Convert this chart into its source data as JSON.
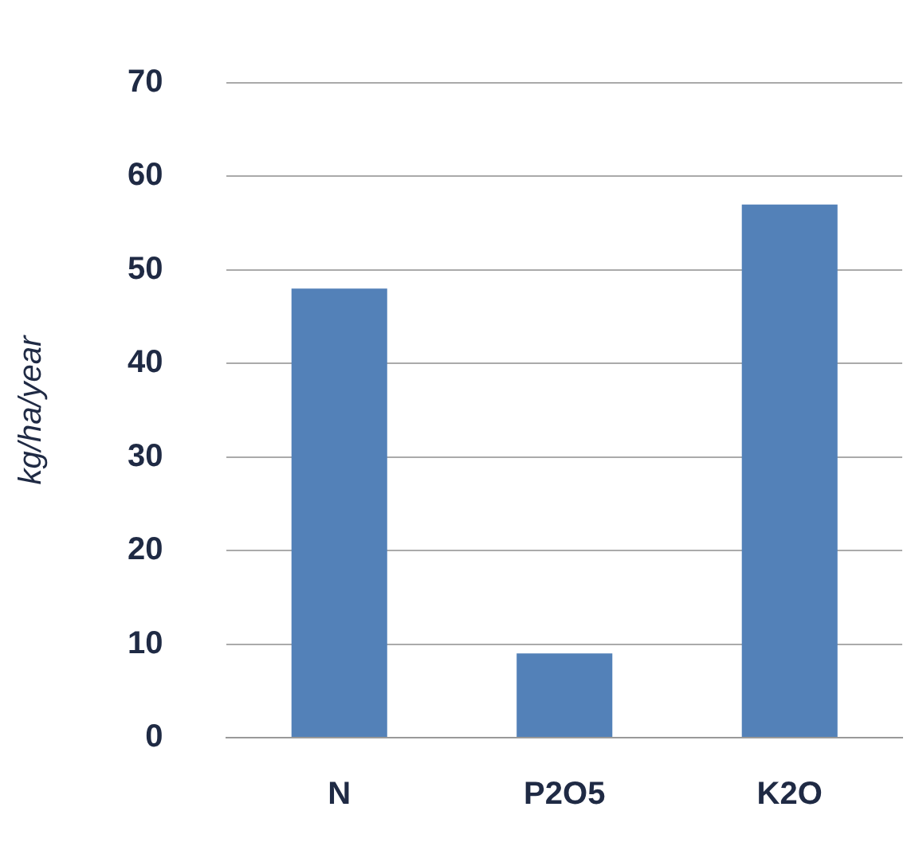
{
  "chart_data": {
    "type": "bar",
    "ylabel": "kg/ha/year",
    "categories": [
      "N",
      "P2O5",
      "K2O"
    ],
    "values": [
      48,
      9,
      57
    ],
    "color": "#5381b8",
    "ylim": [
      0,
      70
    ],
    "yticks": [
      0,
      10,
      20,
      30,
      40,
      50,
      60,
      70
    ],
    "grid": "y",
    "legend": false
  }
}
